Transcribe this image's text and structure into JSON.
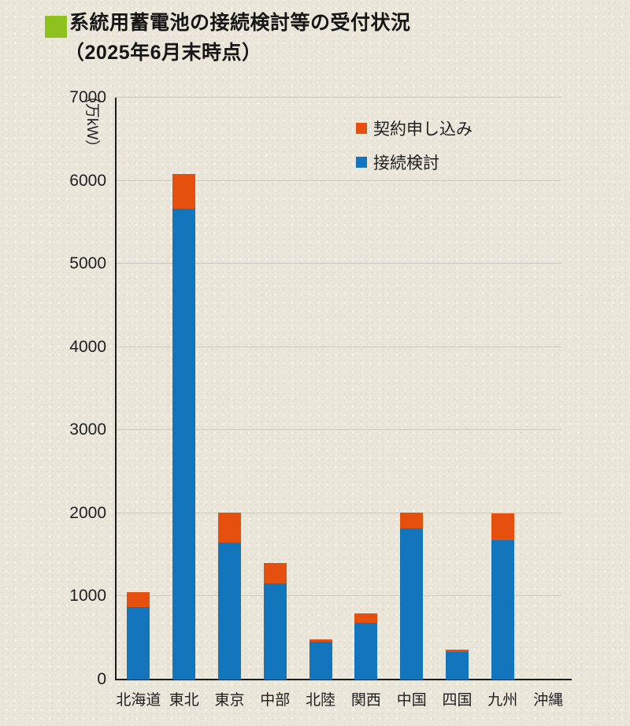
{
  "title": {
    "line1": "系統用蓄電池の接続検討等の受付状況",
    "line2": "（2025年6月末時点）",
    "bullet_color": "#8dc21e"
  },
  "chart_data": {
    "type": "bar",
    "stacked": true,
    "title": "系統用蓄電池の接続検討等の受付状況（2025年6月末時点）",
    "ylabel": "（万kW）",
    "xlabel": "",
    "ylim": [
      0,
      7000
    ],
    "ytick_step": 1000,
    "grid": true,
    "legend_position": "top-right-inside",
    "categories": [
      "北海道",
      "東北",
      "東京",
      "中部",
      "北陸",
      "関西",
      "中国",
      "四国",
      "九州",
      "沖縄"
    ],
    "series": [
      {
        "name": "契約申し込み",
        "color": "#e5500f",
        "values": [
          180,
          420,
          360,
          240,
          30,
          120,
          190,
          30,
          320,
          0
        ]
      },
      {
        "name": "接続検討",
        "color": "#1376bd",
        "values": [
          870,
          5660,
          1650,
          1160,
          450,
          680,
          1820,
          330,
          1680,
          0
        ]
      }
    ]
  },
  "colors": {
    "background": "#ebe6da",
    "grid": "#cbc8c0",
    "axis": "#1c1c1c",
    "text": "#1f1f1f"
  }
}
